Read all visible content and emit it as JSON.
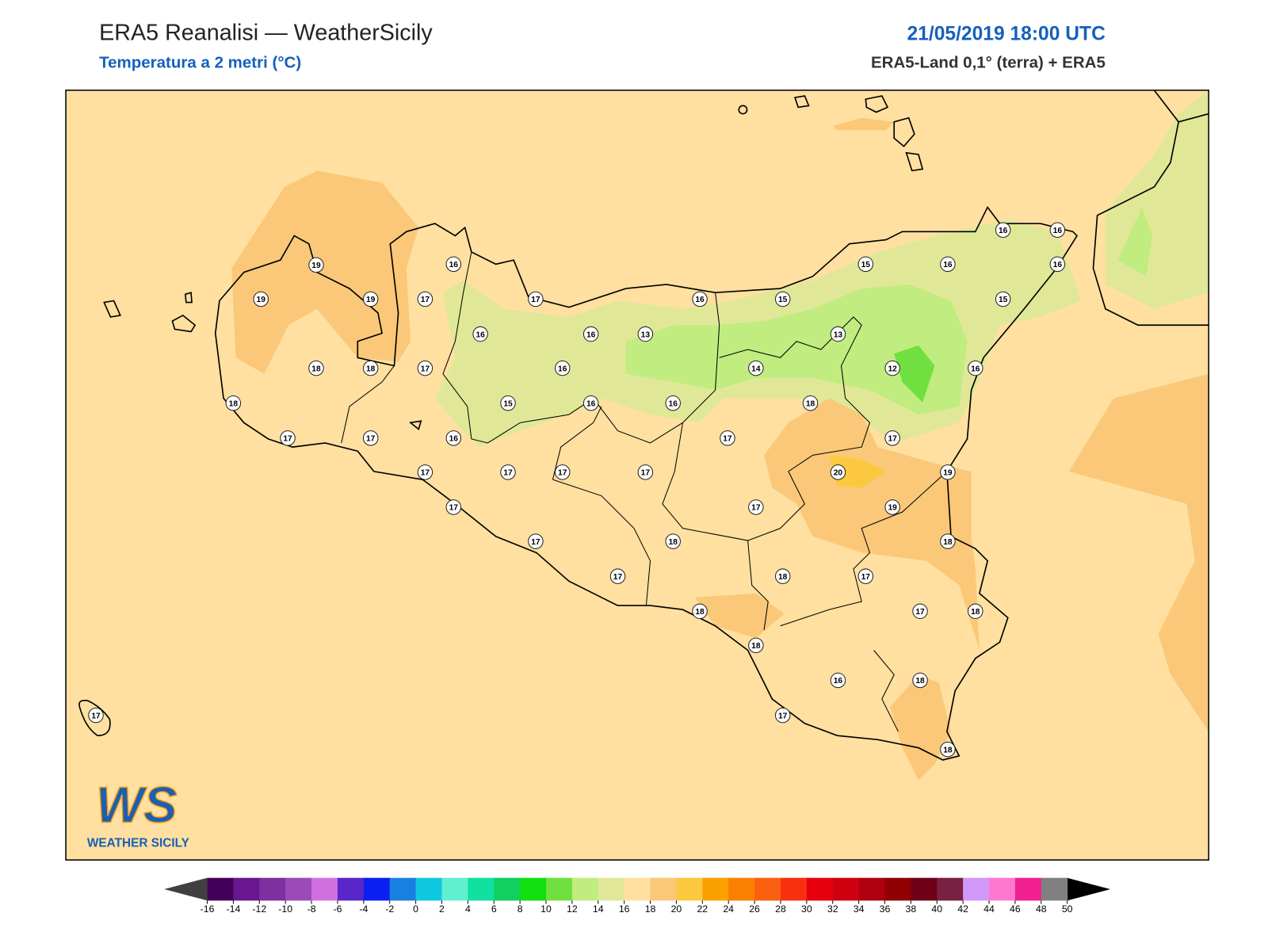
{
  "header": {
    "title": "ERA5 Reanalisi — WeatherSicily",
    "subtitle": "Temperatura a 2 metri (°C)",
    "datetime": "21/05/2019 18:00 UTC",
    "source": "ERA5-Land 0,1° (terra) + ERA5"
  },
  "map": {
    "background": "#ffe0a0",
    "stations": [
      19,
      19,
      19,
      17,
      16,
      17,
      16,
      16,
      13,
      16,
      15,
      15,
      16,
      16,
      16,
      16,
      15,
      13,
      14,
      12,
      16,
      18,
      18,
      18,
      17,
      16,
      15,
      16,
      16,
      18,
      17,
      17,
      16,
      17,
      17,
      17,
      17,
      17,
      17,
      20,
      19,
      17,
      17,
      19,
      17,
      18,
      18,
      17,
      18,
      17,
      18,
      17,
      18,
      18,
      16,
      18,
      17,
      18,
      17
    ]
  },
  "logo": {
    "mark": "WS",
    "name": "WEATHER SICILY"
  },
  "colorbar": {
    "ticks": [
      -16,
      -14,
      -12,
      -10,
      -8,
      -6,
      -4,
      -2,
      0,
      2,
      4,
      6,
      8,
      10,
      12,
      14,
      16,
      18,
      20,
      22,
      24,
      26,
      28,
      30,
      32,
      34,
      36,
      38,
      40,
      42,
      44,
      46,
      48,
      50
    ],
    "colors": [
      "#45005a",
      "#6a1690",
      "#7e2fa0",
      "#9a4bb8",
      "#d070e0",
      "#5b26c8",
      "#0a20f0",
      "#1a80e0",
      "#10c8e0",
      "#60f0d0",
      "#10e0a0",
      "#10d060",
      "#10e010",
      "#70e040",
      "#c0ec80",
      "#e0e898",
      "#ffe0a0",
      "#fac878",
      "#fcc840",
      "#fca000",
      "#fc8000",
      "#fa6010",
      "#f83010",
      "#e80010",
      "#d00010",
      "#b00010",
      "#900000",
      "#700018",
      "#7a2040",
      "#d098f8",
      "#ff78d0",
      "#f02090",
      "#808080",
      "#404040"
    ],
    "under_color": "#404040",
    "over_color": "#000000"
  }
}
